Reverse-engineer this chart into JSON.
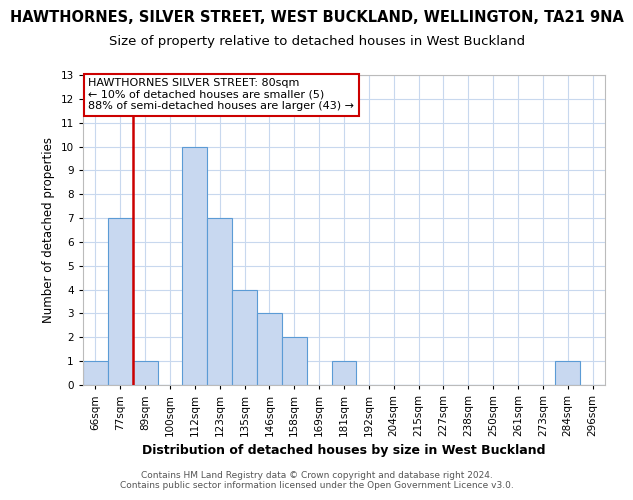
{
  "title": "HAWTHORNES, SILVER STREET, WEST BUCKLAND, WELLINGTON, TA21 9NA",
  "subtitle": "Size of property relative to detached houses in West Buckland",
  "xlabel": "Distribution of detached houses by size in West Buckland",
  "ylabel": "Number of detached properties",
  "bins": [
    "66sqm",
    "77sqm",
    "89sqm",
    "100sqm",
    "112sqm",
    "123sqm",
    "135sqm",
    "146sqm",
    "158sqm",
    "169sqm",
    "181sqm",
    "192sqm",
    "204sqm",
    "215sqm",
    "227sqm",
    "238sqm",
    "250sqm",
    "261sqm",
    "273sqm",
    "284sqm",
    "296sqm"
  ],
  "values": [
    1,
    7,
    1,
    0,
    10,
    7,
    4,
    3,
    2,
    0,
    1,
    0,
    0,
    0,
    0,
    0,
    0,
    0,
    0,
    1,
    0
  ],
  "bar_color": "#c8d8f0",
  "bar_edge_color": "#5b9bd5",
  "marker_color": "#cc0000",
  "red_line_x": 1.5,
  "ylim": [
    0,
    13
  ],
  "yticks": [
    0,
    1,
    2,
    3,
    4,
    5,
    6,
    7,
    8,
    9,
    10,
    11,
    12,
    13
  ],
  "annotation_title": "HAWTHORNES SILVER STREET: 80sqm",
  "annotation_line1": "← 10% of detached houses are smaller (5)",
  "annotation_line2": "88% of semi-detached houses are larger (43) →",
  "footer_line1": "Contains HM Land Registry data © Crown copyright and database right 2024.",
  "footer_line2": "Contains public sector information licensed under the Open Government Licence v3.0.",
  "bg_color": "#ffffff",
  "grid_color": "#c8d8ee",
  "title_fontsize": 10.5,
  "subtitle_fontsize": 9.5,
  "ylabel_fontsize": 8.5,
  "xlabel_fontsize": 9,
  "tick_fontsize": 7.5,
  "annotation_fontsize": 8,
  "footer_fontsize": 6.5
}
